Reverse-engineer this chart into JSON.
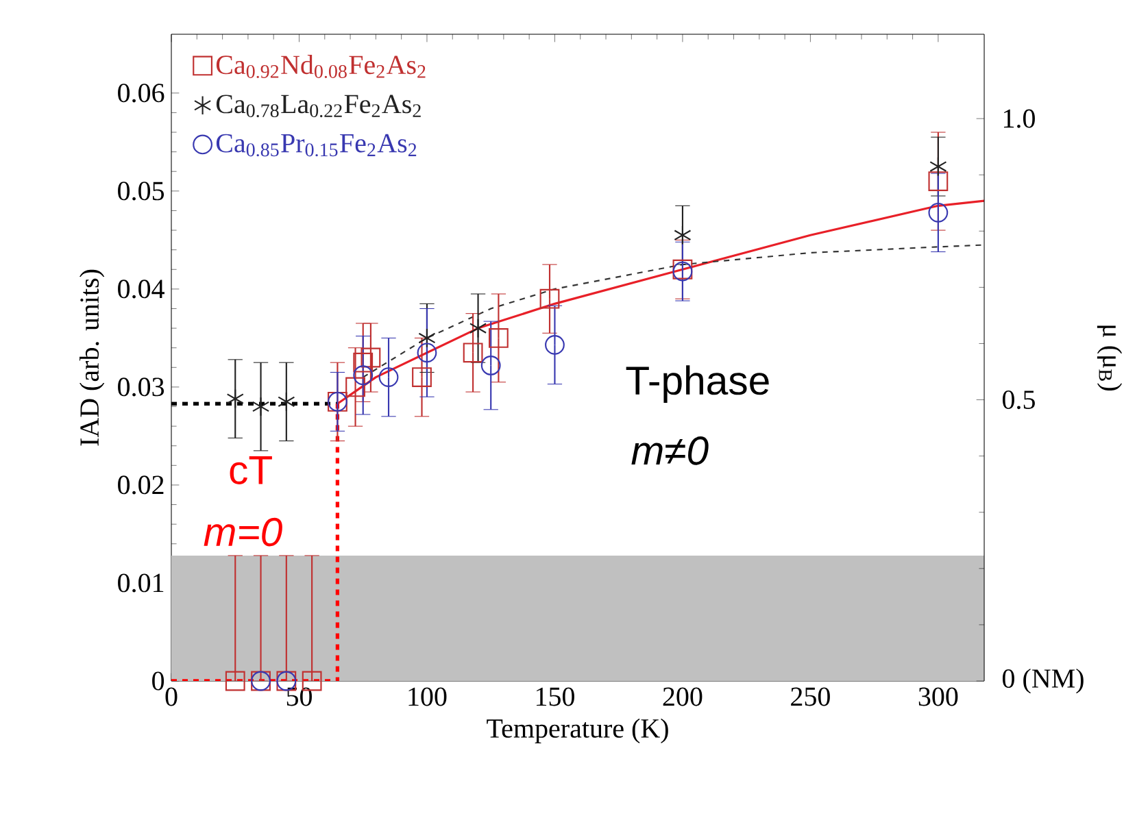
{
  "chart_data": {
    "type": "scatter",
    "xlabel": "Temperature (K)",
    "ylabel": "IAD (arb. units)",
    "y2label": "μ (μ$_{B}$)",
    "xlim": [
      0,
      318
    ],
    "ylim": [
      0,
      0.066
    ],
    "y2lim": [
      0,
      1.15
    ],
    "xticks": [
      0,
      50,
      100,
      150,
      200,
      250,
      300
    ],
    "yticks": [
      0,
      0.01,
      0.02,
      0.03,
      0.04,
      0.05,
      0.06
    ],
    "y2ticks": [
      {
        "value": 0,
        "label": "0 (NM)"
      },
      0.5,
      {
        "value": 1.0,
        "label": "1.0"
      }
    ],
    "legend": "top left",
    "bands": [
      {
        "axis": "y",
        "from": 0,
        "to": 0.0128,
        "color": "#c0c0c0"
      }
    ],
    "annotations": [
      "T-phase",
      "m≠0",
      "cT",
      "m=0"
    ],
    "series": [
      {
        "name": "Ca$_{0.92}$Nd$_{0.08}$Fe$_{2}$As$_{2}$",
        "color": "#c03030",
        "marker": "square",
        "x": [
          25,
          35,
          45,
          55,
          65,
          72,
          75,
          78,
          98,
          118,
          128,
          148,
          200,
          300
        ],
        "values": [
          0,
          0,
          0,
          0,
          0.0285,
          0.03,
          0.0325,
          0.033,
          0.031,
          0.0335,
          0.035,
          0.039,
          0.042,
          0.051
        ],
        "errors": [
          [
            0,
            0.0128
          ],
          [
            0,
            0.0128
          ],
          [
            0,
            0.0128
          ],
          [
            0,
            0.0128
          ],
          0.004,
          0.004,
          0.004,
          0.0035,
          0.004,
          0.004,
          0.0045,
          0.0035,
          0.003,
          0.005
        ]
      },
      {
        "name": "Ca$_{0.78}$La$_{0.22}$Fe$_{2}$As$_{2}$",
        "color": "#222222",
        "marker": "cross",
        "x": [
          25,
          35,
          45,
          100,
          120,
          200,
          300
        ],
        "values": [
          0.0288,
          0.028,
          0.0285,
          0.035,
          0.036,
          0.0455,
          0.0525
        ],
        "errors": [
          0.004,
          0.0045,
          0.004,
          0.0035,
          0.0035,
          0.003,
          0.003
        ]
      },
      {
        "name": "Ca$_{0.85}$Pr$_{0.15}$Fe$_{2}$As$_{2}$",
        "color": "#3838b0",
        "marker": "circle",
        "x": [
          35,
          45,
          65,
          75,
          85,
          100,
          125,
          150,
          200,
          300
        ],
        "values": [
          0,
          0,
          0.0285,
          0.0312,
          0.031,
          0.0335,
          0.0322,
          0.0343,
          0.0418,
          0.0478
        ],
        "errors": [
          null,
          null,
          0.003,
          0.004,
          0.004,
          0.0045,
          0.0045,
          0.004,
          0.003,
          0.004
        ]
      },
      {
        "type": "line",
        "color": "#e82028",
        "line_style": "solid",
        "x": [
          65,
          80,
          100,
          120,
          150,
          200,
          250,
          300,
          318
        ],
        "values": [
          0.0283,
          0.031,
          0.0335,
          0.036,
          0.0385,
          0.042,
          0.0455,
          0.0485,
          0.049
        ]
      },
      {
        "type": "line",
        "color": "#333333",
        "line_style": "dashed",
        "x": [
          75,
          100,
          125,
          150,
          200,
          250,
          300,
          318
        ],
        "values": [
          0.031,
          0.035,
          0.038,
          0.04,
          0.0425,
          0.0437,
          0.0443,
          0.0445
        ]
      },
      {
        "type": "line",
        "color": "#000000",
        "line_style": "dashed",
        "x": [
          0,
          65
        ],
        "values": [
          0.0283,
          0.0283
        ]
      },
      {
        "type": "line",
        "color": "#ff0000",
        "line_style": "dashed",
        "x": [
          0,
          65,
          65
        ],
        "values": [
          0,
          0,
          0.0283
        ]
      }
    ]
  }
}
